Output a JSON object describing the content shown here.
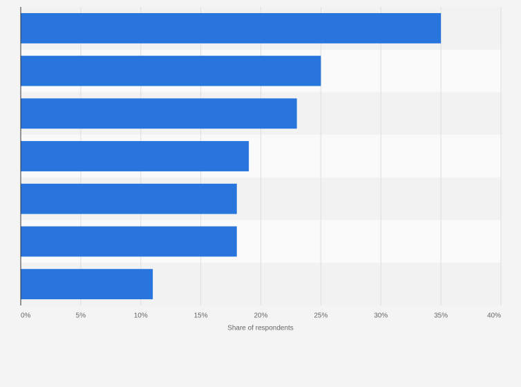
{
  "chart_data": {
    "type": "bar",
    "x_label": "Share of respondents",
    "categories": [
      null,
      null,
      null,
      null,
      null,
      null,
      null
    ],
    "values": [
      35,
      25,
      23,
      19,
      18,
      18,
      11
    ],
    "color": "#2876dd",
    "xlim": [
      0,
      40
    ],
    "xticks": [
      {
        "value": 0,
        "label": "0%"
      },
      {
        "value": 5,
        "label": "5%"
      },
      {
        "value": 10,
        "label": "10%"
      },
      {
        "value": 15,
        "label": "15%"
      },
      {
        "value": 20,
        "label": "20%"
      },
      {
        "value": 25,
        "label": "25%"
      },
      {
        "value": 30,
        "label": "30%"
      },
      {
        "value": 35,
        "label": "35%"
      },
      {
        "value": 40,
        "label": "40%"
      }
    ],
    "grid": true
  }
}
